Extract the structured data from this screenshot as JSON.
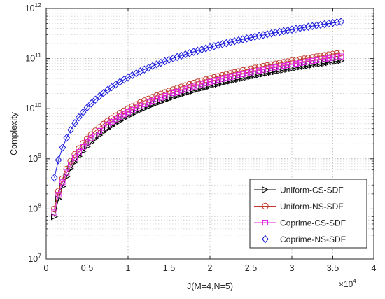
{
  "chart_data": {
    "type": "line",
    "title": "",
    "xlabel": "J(M=4,N=5)",
    "ylabel": "Complexity",
    "x_scale_exponent": "×10",
    "x_scale_power": "4",
    "x_scale": "linear",
    "y_scale": "log",
    "xlim": [
      0,
      40000
    ],
    "ylim": [
      10000000,
      1000000000000
    ],
    "x_ticks": [
      0,
      5000,
      10000,
      15000,
      20000,
      25000,
      30000,
      35000,
      40000
    ],
    "x_tick_labels": [
      "0",
      "0.5",
      "1",
      "1.5",
      "2",
      "2.5",
      "3",
      "3.5",
      "4"
    ],
    "y_ticks": [
      10000000,
      100000000,
      1000000000,
      10000000000,
      100000000000,
      1000000000000
    ],
    "y_tick_base": "10",
    "y_tick_exponents": [
      "7",
      "8",
      "9",
      "10",
      "11",
      "12"
    ],
    "grid": true,
    "legend_position": "bottom-right",
    "x": [
      1000,
      1500,
      2000,
      2500,
      3000,
      3500,
      4000,
      4500,
      5000,
      5500,
      6000,
      6500,
      7000,
      7500,
      8000,
      8500,
      9000,
      9500,
      10000,
      10500,
      11000,
      11500,
      12000,
      12500,
      13000,
      13500,
      14000,
      14500,
      15000,
      15500,
      16000,
      16500,
      17000,
      17500,
      18000,
      18500,
      19000,
      19500,
      20000,
      20500,
      21000,
      21500,
      22000,
      22500,
      23000,
      23500,
      24000,
      24500,
      25000,
      25500,
      26000,
      26500,
      27000,
      27500,
      28000,
      28500,
      29000,
      29500,
      30000,
      30500,
      31000,
      31500,
      32000,
      32500,
      33000,
      33500,
      34000,
      34500,
      35000,
      35500,
      36000
    ],
    "series": [
      {
        "name": "Uniform-CS-SDF",
        "marker": "triangle-right",
        "color": "#000000",
        "y_at_1000": 70000000,
        "power": 2
      },
      {
        "name": "Uniform-NS-SDF",
        "marker": "circle",
        "color": "#c0392b",
        "y_at_1000": 100000000,
        "power": 2
      },
      {
        "name": "Coprime-CS-SDF",
        "marker": "square",
        "color": "#e020e0",
        "y_at_1000": 85000000,
        "power": 2
      },
      {
        "name": "Coprime-NS-SDF",
        "marker": "diamond",
        "color": "#1a1adb",
        "y_at_1000": 420000000,
        "power": 2
      }
    ]
  }
}
